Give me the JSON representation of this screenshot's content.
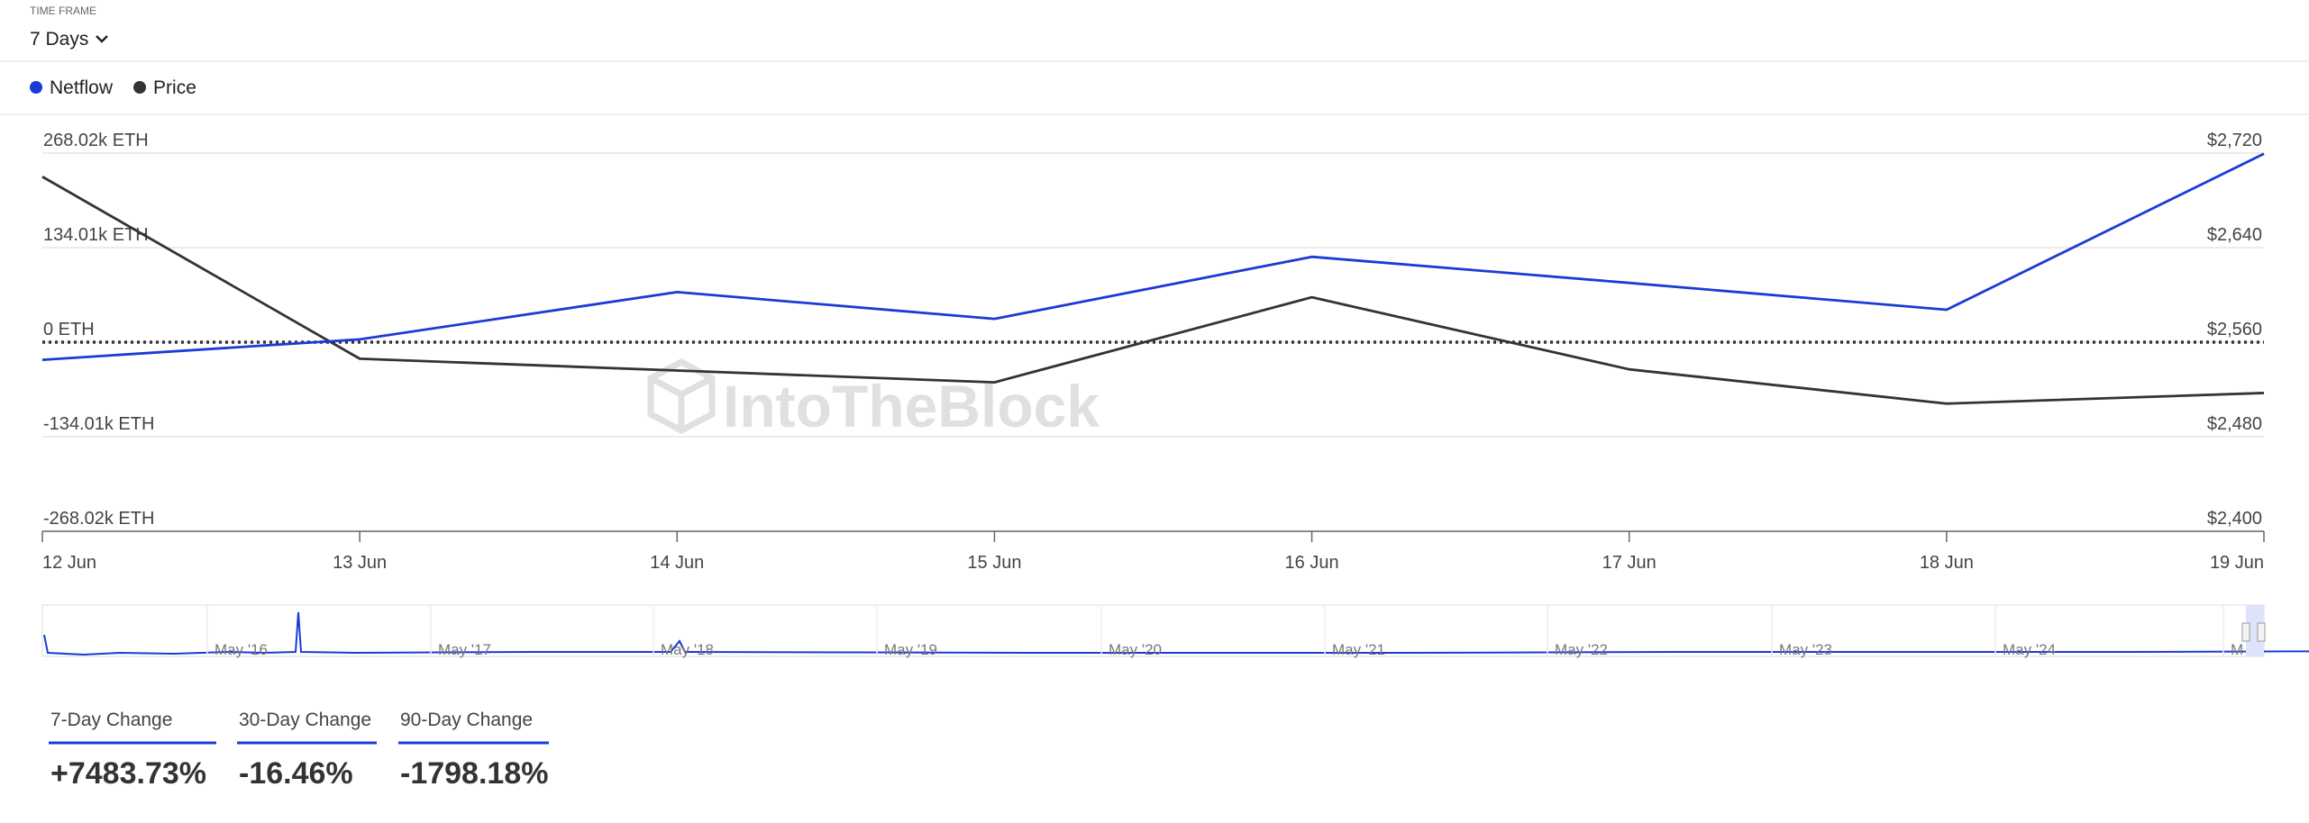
{
  "time_frame": {
    "label": "TIME FRAME",
    "value": "7 Days"
  },
  "chart_data": {
    "type": "line",
    "x": [
      "12 Jun",
      "13 Jun",
      "14 Jun",
      "15 Jun",
      "16 Jun",
      "17 Jun",
      "18 Jun",
      "19 Jun"
    ],
    "series": [
      {
        "name": "Netflow",
        "color": "#1a3bd6",
        "values": [
          -25000,
          4000,
          71000,
          33000,
          121000,
          84000,
          46000,
          267000
        ]
      },
      {
        "name": "Price",
        "color": "#333333",
        "axis": "y2",
        "values": [
          2700,
          2546,
          2536,
          2526,
          2598,
          2537,
          2508,
          2517
        ]
      }
    ],
    "ylim": [
      -268020,
      268020
    ],
    "yticks": [
      {
        "value": -268020,
        "label": "-268.02k ETH"
      },
      {
        "value": -134010,
        "label": "-134.01k ETH"
      },
      {
        "value": 0,
        "label": "0 ETH"
      },
      {
        "value": 134010,
        "label": "134.01k ETH"
      },
      {
        "value": 268020,
        "label": "268.02k ETH"
      }
    ],
    "y2lim": [
      2400,
      2720
    ],
    "y2ticks": [
      {
        "value": 2400,
        "label": "$2,400"
      },
      {
        "value": 2480,
        "label": "$2,480"
      },
      {
        "value": 2560,
        "label": "$2,560"
      },
      {
        "value": 2640,
        "label": "$2,640"
      },
      {
        "value": 2720,
        "label": "$2,720"
      }
    ],
    "grid": true,
    "legend": "top-left"
  },
  "watermark": "IntoTheBlock",
  "navigator": {
    "labels": [
      "May '16",
      "May '17",
      "May '18",
      "May '19",
      "May '20",
      "May '21",
      "May '22",
      "May '23",
      "May '24",
      "M"
    ]
  },
  "stats": [
    {
      "label": "7-Day Change",
      "value": "+7483.73%"
    },
    {
      "label": "30-Day Change",
      "value": "-16.46%"
    },
    {
      "label": "90-Day Change",
      "value": "-1798.18%"
    }
  ]
}
